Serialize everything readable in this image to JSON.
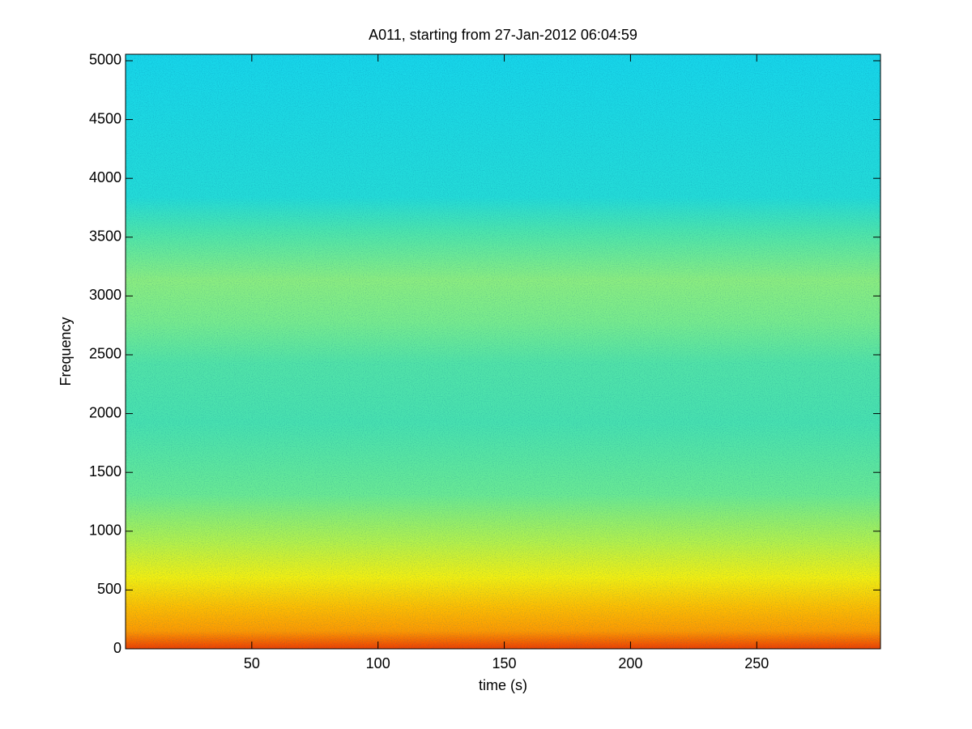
{
  "chart_data": {
    "type": "spectrogram",
    "title": "A011, starting from 27-Jan-2012 06:04:59",
    "xlabel": "time (s)",
    "ylabel": "Frequency",
    "xlim": [
      0,
      299
    ],
    "xticks": [
      50,
      100,
      150,
      200,
      250
    ],
    "ylim": [
      0,
      5055
    ],
    "yticks": [
      0,
      500,
      1000,
      1500,
      2000,
      2500,
      3000,
      3500,
      4000,
      4500,
      5000
    ],
    "colormap": "jet"
  }
}
